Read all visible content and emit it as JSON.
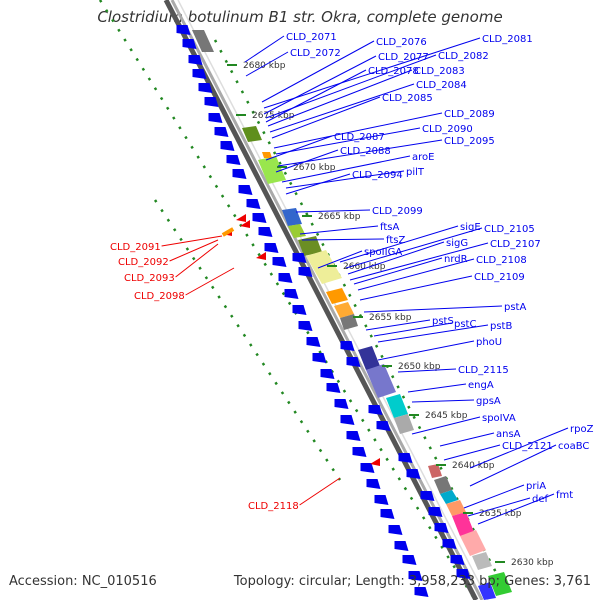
{
  "title": "Clostridium botulinum B1 str. Okra, complete genome",
  "footer": {
    "accession": "Accession: NC_010516",
    "summary": "Topology: circular; Length: 3,958,233 bp; Genes: 3,761"
  },
  "ticks": [
    "2680 kbp",
    "2675 kbp",
    "2670 kbp",
    "2665 kbp",
    "2660 kbp",
    "2655 kbp",
    "2650 kbp",
    "2645 kbp",
    "2640 kbp",
    "2635 kbp",
    "2630 kbp"
  ],
  "colors": {
    "forward": "#0000ee",
    "reverse": "#ee0000",
    "backbone": "#999999",
    "dots": "#228822"
  },
  "forward_labels": [
    "CLD_2071",
    "CLD_2072",
    "CLD_2076",
    "CLD_2081",
    "CLD_2077",
    "CLD_2082",
    "CLD_2078",
    "CLD_2083",
    "CLD_2084",
    "CLD_2085",
    "CLD_2089",
    "CLD_2090",
    "CLD_2087",
    "CLD_2095",
    "CLD_2088",
    "aroE",
    "pilT",
    "CLD_2094",
    "CLD_2099",
    "ftsA",
    "ftsZ",
    "sigE",
    "CLD_2105",
    "spoIIGA",
    "sigG",
    "CLD_2107",
    "nrdR",
    "CLD_2108",
    "CLD_2109",
    "pstA",
    "pstS",
    "pstC",
    "pstB",
    "phoU",
    "CLD_2115",
    "engA",
    "gpsA",
    "spoIVA",
    "ansA",
    "rpoZ",
    "CLD_2121",
    "coaBC",
    "priA",
    "def",
    "fmt"
  ],
  "reverse_labels": [
    "CLD_2091",
    "CLD_2092",
    "CLD_2093",
    "CLD_2098",
    "CLD_2118"
  ]
}
